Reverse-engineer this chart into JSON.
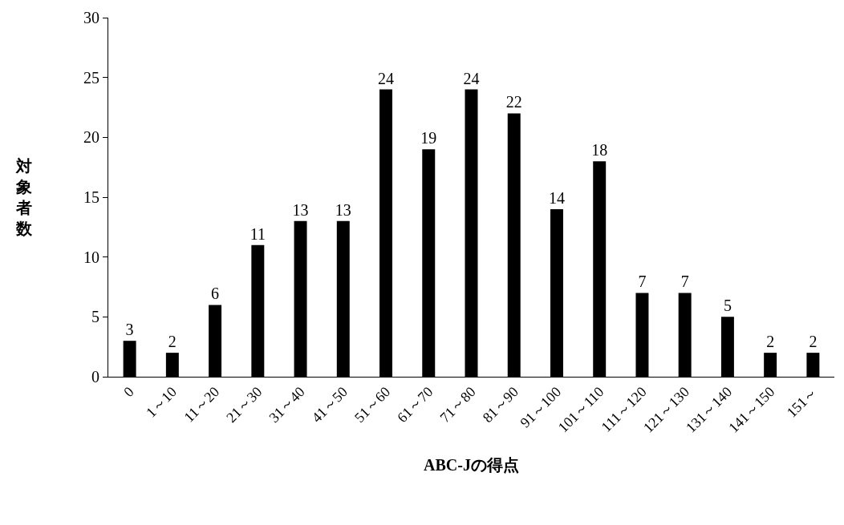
{
  "chart_data": {
    "type": "bar",
    "xlabel": "ABC-Jの得点",
    "ylabel": "対象者数",
    "categories": [
      "0",
      "1～10",
      "11～20",
      "21～30",
      "31～40",
      "41～50",
      "51～60",
      "61～70",
      "71～80",
      "81～90",
      "91～100",
      "101～110",
      "111～120",
      "121～130",
      "131～140",
      "141～150",
      "151～"
    ],
    "values": [
      3,
      2,
      6,
      11,
      13,
      13,
      24,
      19,
      24,
      22,
      14,
      18,
      7,
      7,
      5,
      2,
      2
    ],
    "color": "#000000",
    "ylim": [
      0,
      30
    ],
    "yticks": [
      0,
      5,
      10,
      15,
      20,
      25,
      30
    ],
    "data_labels": true
  }
}
